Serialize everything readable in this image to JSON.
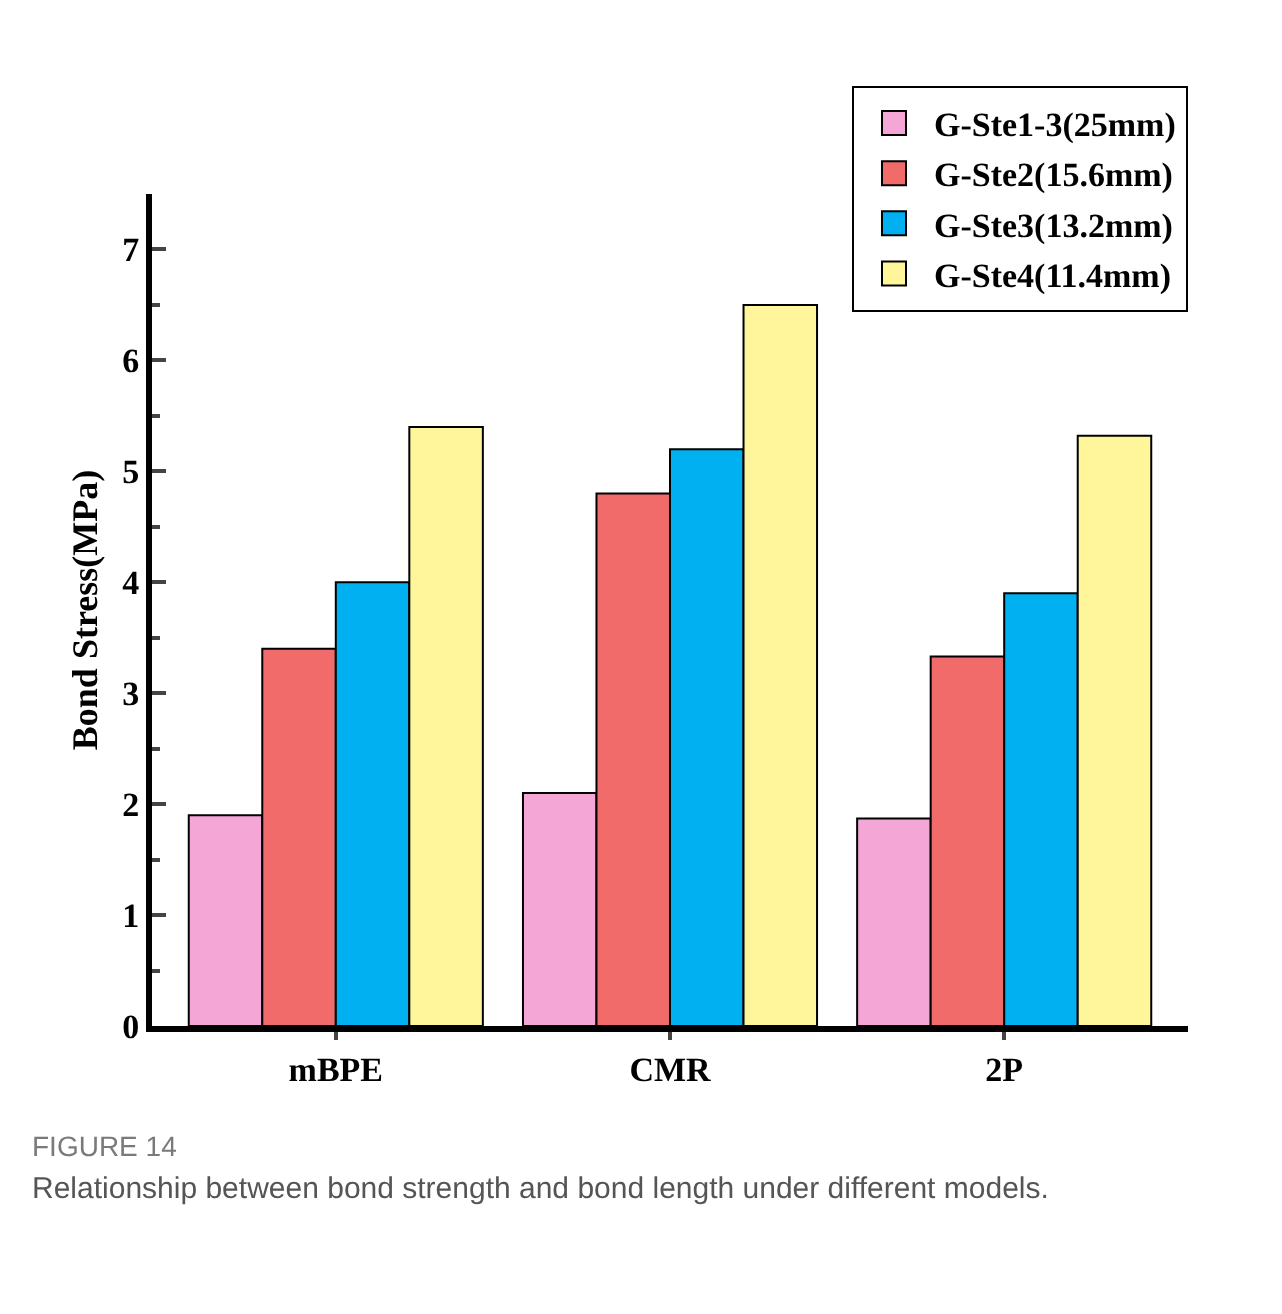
{
  "chart_data": {
    "type": "bar",
    "categories": [
      "mBPE",
      "CMR",
      "2P"
    ],
    "ylabel": "Bond Stress(MPa)",
    "series": [
      {
        "name": "G-Ste1-3(25mm)",
        "color": "#f4a6d7",
        "values": [
          1.9,
          2.1,
          1.87
        ]
      },
      {
        "name": "G-Ste2(15.6mm)",
        "color": "#f26b6b",
        "values": [
          3.4,
          4.8,
          3.33
        ]
      },
      {
        "name": "G-Ste3(13.2mm)",
        "color": "#00b0f0",
        "values": [
          4.0,
          5.2,
          3.9
        ]
      },
      {
        "name": "G-Ste4(11.4mm)",
        "color": "#fff59a",
        "values": [
          5.4,
          6.5,
          5.32
        ]
      }
    ],
    "ylim": [
      0,
      7.5
    ],
    "yticks": [
      0,
      {
        "value": 0.5,
        "label": null
      },
      1,
      {
        "value": 1.5,
        "label": null
      },
      2,
      {
        "value": 2.5,
        "label": null
      },
      3,
      {
        "value": 3.5,
        "label": null
      },
      4,
      {
        "value": 4.5,
        "label": null
      },
      5,
      {
        "value": 5.5,
        "label": null
      },
      6,
      {
        "value": 6.5,
        "label": null
      },
      7
    ],
    "legend": "top right",
    "annotations": [
      "FIGURE 14",
      "Relationship between bond strength and bond length under different models."
    ]
  }
}
